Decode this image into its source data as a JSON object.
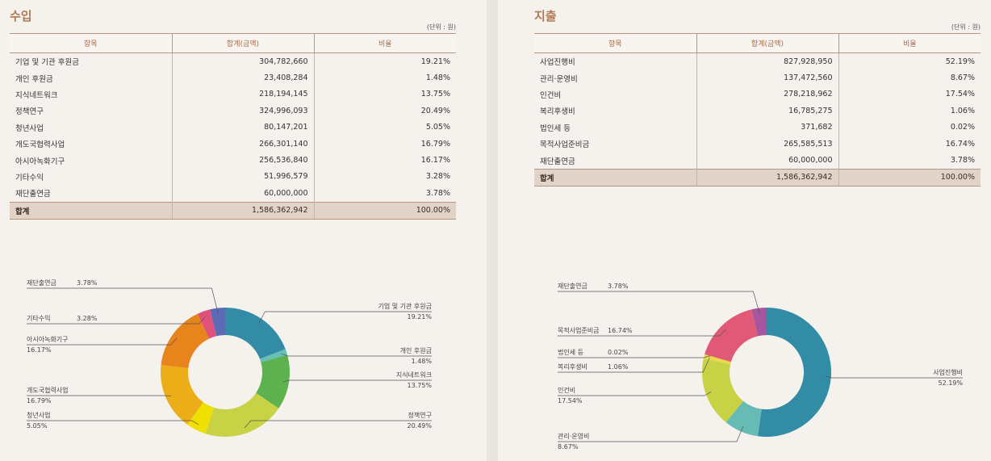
{
  "income": {
    "title": "수입",
    "unit": "(단위 : 원)",
    "headers": [
      "항목",
      "합계(금액)",
      "비율"
    ],
    "rows": [
      {
        "item": "기업 및 기관 후원금",
        "amount": "304,782,660",
        "ratio": "19.21%"
      },
      {
        "item": "개인 후원금",
        "amount": "23,408,284",
        "ratio": "1.48%"
      },
      {
        "item": "지식네트워크",
        "amount": "218,194,145",
        "ratio": "13.75%"
      },
      {
        "item": "정책연구",
        "amount": "324,996,093",
        "ratio": "20.49%"
      },
      {
        "item": "청년사업",
        "amount": "80,147,201",
        "ratio": "5.05%"
      },
      {
        "item": "개도국협력사업",
        "amount": "266,301,140",
        "ratio": "16.79%"
      },
      {
        "item": "아시아녹화기구",
        "amount": "256,536,840",
        "ratio": "16.17%"
      },
      {
        "item": "기타수익",
        "amount": "51,996,579",
        "ratio": "3.28%"
      },
      {
        "item": "재단출연금",
        "amount": "60,000,000",
        "ratio": "3.78%"
      }
    ],
    "total": {
      "item": "합계",
      "amount": "1,586,362,942",
      "ratio": "100.00%"
    }
  },
  "expense": {
    "title": "지출",
    "unit": "(단위 : 원)",
    "headers": [
      "항목",
      "합계(금액)",
      "비율"
    ],
    "rows": [
      {
        "item": "사업진행비",
        "amount": "827,928,950",
        "ratio": "52.19%"
      },
      {
        "item": "관리·운영비",
        "amount": "137,472,560",
        "ratio": "8.67%"
      },
      {
        "item": "인건비",
        "amount": "278,218,962",
        "ratio": "17.54%"
      },
      {
        "item": "복리후생비",
        "amount": "16,785,275",
        "ratio": "1.06%"
      },
      {
        "item": "법인세 등",
        "amount": "371,682",
        "ratio": "0.02%"
      },
      {
        "item": "목적사업준비금",
        "amount": "265,585,513",
        "ratio": "16.74%"
      },
      {
        "item": "재단출연금",
        "amount": "60,000,000",
        "ratio": "3.78%"
      }
    ],
    "total": {
      "item": "합계",
      "amount": "1,586,362,942",
      "ratio": "100.00%"
    }
  },
  "chart_data": [
    {
      "type": "pie",
      "title": "수입",
      "categories": [
        "기업 및 기관 후원금",
        "개인 후원금",
        "지식네트워크",
        "정책연구",
        "청년사업",
        "개도국협력사업",
        "아시아녹화기구",
        "기타수익",
        "재단출연금"
      ],
      "values": [
        19.21,
        1.48,
        13.75,
        20.49,
        5.05,
        16.79,
        16.17,
        3.28,
        3.78
      ],
      "labels": [
        "19.21%",
        "1.48%",
        "13.75%",
        "20.49%",
        "5.05%",
        "16.79%",
        "16.17%",
        "3.28%",
        "3.78%"
      ],
      "colors": [
        "#338ca6",
        "#66c0b8",
        "#5db24f",
        "#c7d245",
        "#f0e000",
        "#ebae18",
        "#e8841c",
        "#e0527a",
        "#5c6bb5"
      ],
      "donut": true
    },
    {
      "type": "pie",
      "title": "지출",
      "categories": [
        "사업진행비",
        "관리·운영비",
        "인건비",
        "복리후생비",
        "법인세 등",
        "목적사업준비금",
        "재단출연금"
      ],
      "values": [
        52.19,
        8.67,
        17.54,
        1.06,
        0.02,
        16.74,
        3.78
      ],
      "labels": [
        "52.19%",
        "8.67%",
        "17.54%",
        "1.06%",
        "0.02%",
        "16.74%",
        "3.78%"
      ],
      "colors": [
        "#338ca6",
        "#66bcb4",
        "#c7d245",
        "#e8d84a",
        "#f3b324",
        "#e05a78",
        "#a855a0"
      ],
      "donut": true
    }
  ]
}
